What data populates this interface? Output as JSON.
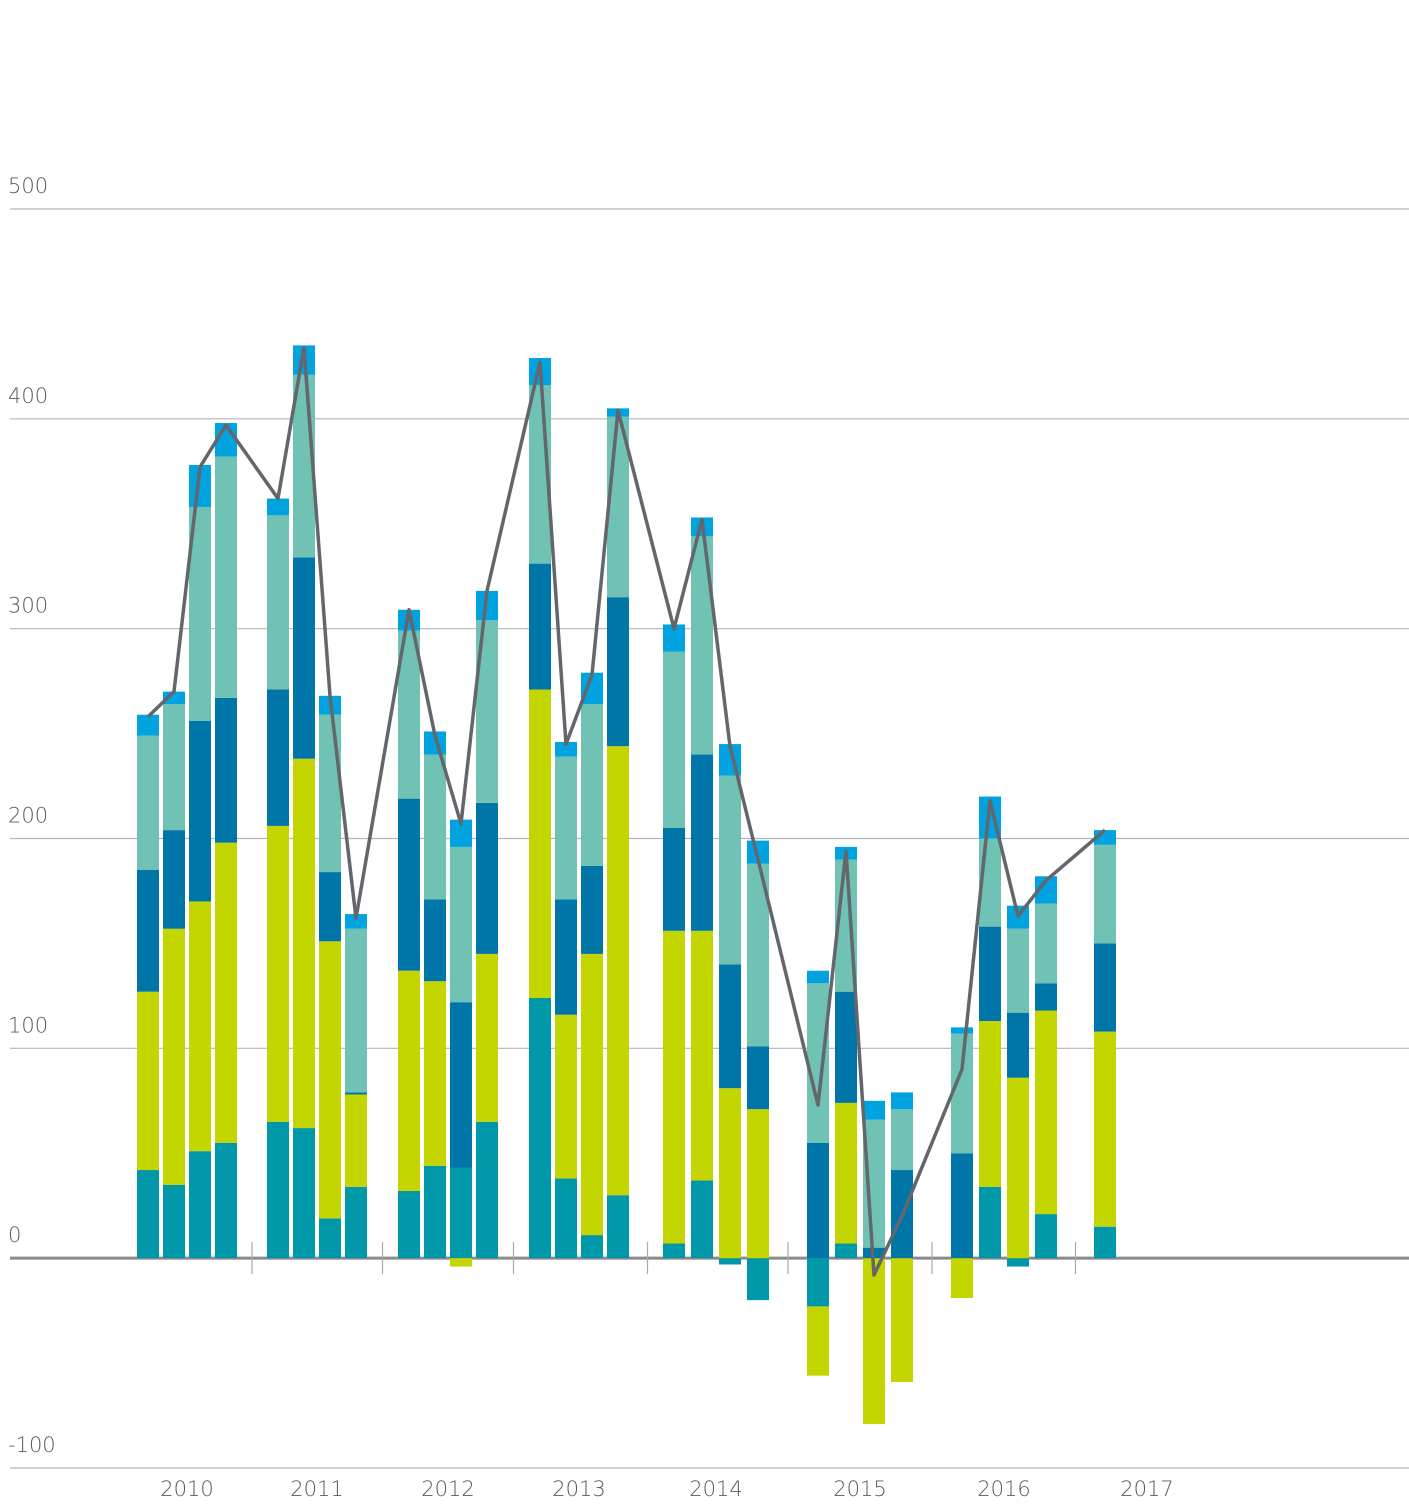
{
  "chart_data": {
    "type": "stacked_bar_line",
    "groups": [
      "2010",
      "2011",
      "2012",
      "2013",
      "2014",
      "2015",
      "2016",
      "2017"
    ],
    "categories": [
      null,
      null,
      null,
      null,
      null,
      null,
      null,
      null,
      null,
      null,
      null,
      null,
      null,
      null,
      null,
      null,
      null,
      null,
      null,
      null,
      null,
      null,
      null,
      null,
      null,
      null,
      null,
      null,
      null,
      null,
      null,
      null
    ],
    "series": [
      {
        "color": "#0097a9",
        "values": [
          42,
          35,
          51,
          55,
          65,
          62,
          19,
          34,
          32,
          44,
          43,
          65,
          124,
          38,
          11,
          30,
          7,
          37,
          -3,
          -20,
          -23,
          7,
          0,
          0,
          0,
          34,
          -4,
          21,
          15,
          null,
          null,
          null
        ]
      },
      {
        "color": "#c4d600",
        "values": [
          85,
          122,
          119,
          143,
          141,
          176,
          132,
          44,
          105,
          88,
          -4,
          80,
          147,
          78,
          134,
          214,
          149,
          119,
          81,
          71,
          -33,
          67,
          -79,
          -59,
          -19,
          79,
          86,
          97,
          93,
          null,
          null,
          null
        ]
      },
      {
        "color": "#0076a8",
        "values": [
          58,
          47,
          86,
          69,
          65,
          96,
          33,
          1,
          82,
          39,
          79,
          72,
          60,
          55,
          42,
          71,
          49,
          84,
          59,
          30,
          55,
          53,
          5,
          42,
          50,
          45,
          31,
          13,
          42,
          null,
          null,
          null
        ]
      },
      {
        "color": "#6fc2b4",
        "values": [
          64,
          60,
          102,
          115,
          83,
          87,
          75,
          78,
          80,
          69,
          74,
          87,
          85,
          68,
          77,
          86,
          84,
          104,
          90,
          87,
          76,
          63,
          61,
          29,
          57,
          42,
          40,
          38,
          47,
          null,
          null,
          null
        ]
      },
      {
        "color": "#00a3e0",
        "values": [
          10,
          6,
          20,
          16,
          8,
          14,
          9,
          7,
          10,
          11,
          13,
          14,
          13,
          7,
          15,
          4,
          13,
          9,
          15,
          11,
          6,
          6,
          9,
          8,
          3,
          20,
          11,
          13,
          7,
          null,
          null,
          null
        ]
      }
    ],
    "line": {
      "color": "#63666a",
      "values": [
        258,
        270,
        377,
        397,
        362,
        434,
        268,
        162,
        309,
        249,
        207,
        318,
        427,
        245,
        278,
        404,
        300,
        352,
        244,
        190,
        73,
        194,
        -8,
        20,
        90,
        218,
        163,
        180,
        204,
        null,
        null,
        null
      ]
    },
    "ylim": [
      -100,
      500
    ],
    "yticks": [
      -100,
      0,
      100,
      200,
      300,
      400,
      500
    ],
    "grid": true
  }
}
